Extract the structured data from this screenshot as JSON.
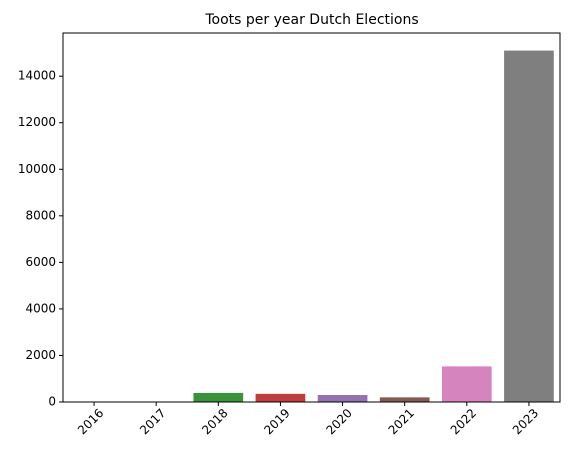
{
  "chart_data": {
    "type": "bar",
    "title": "Toots per year Dutch Elections",
    "xlabel": "",
    "ylabel": "",
    "categories": [
      "2016",
      "2017",
      "2018",
      "2019",
      "2020",
      "2021",
      "2022",
      "2023"
    ],
    "values": [
      10,
      20,
      390,
      350,
      300,
      200,
      1530,
      15100
    ],
    "colors": [
      "#1f77b4",
      "#ff7f0e",
      "#3a923a",
      "#c03d3e",
      "#9372b2",
      "#845b53",
      "#d684bd",
      "#7f7f7f"
    ],
    "ylim": [
      0,
      15855
    ],
    "yticks": [
      "0",
      "2000",
      "4000",
      "6000",
      "8000",
      "10000",
      "12000",
      "14000"
    ],
    "grid": false,
    "legend": "none"
  }
}
